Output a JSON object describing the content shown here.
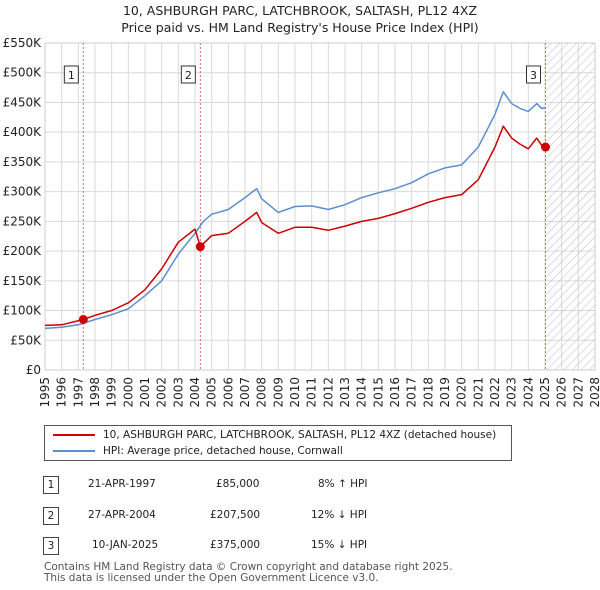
{
  "title_line1": "10, ASHBURGH PARC, LATCHBROOK, SALTASH, PL12 4XZ",
  "title_line2": "Price paid vs. HM Land Registry's House Price Index (HPI)",
  "legend": {
    "property": "10, ASHBURGH PARC, LATCHBROOK, SALTASH, PL12 4XZ (detached house)",
    "hpi": "HPI: Average price, detached house, Cornwall"
  },
  "colors": {
    "property": "#cc0000",
    "hpi": "#5b8fcf",
    "grid": "#d9d9d9",
    "vline": "#e06666",
    "hatch": "#bbbbbb"
  },
  "transactions": [
    {
      "num": "1",
      "date": "21-APR-1997",
      "price": "£85,000",
      "hpi": "8% ↑ HPI"
    },
    {
      "num": "2",
      "date": "27-APR-2004",
      "price": "£207,500",
      "hpi": "12% ↓ HPI"
    },
    {
      "num": "3",
      "date": "10-JAN-2025",
      "price": "£375,000",
      "hpi": "15% ↓ HPI"
    }
  ],
  "footer_line1": "Contains HM Land Registry data © Crown copyright and database right 2025.",
  "footer_line2": "This data is licensed under the Open Government Licence v3.0.",
  "chart_data": {
    "type": "line",
    "xlim": [
      1995,
      2028
    ],
    "ylim": [
      0,
      550000
    ],
    "x_ticks": [
      "1995",
      "1996",
      "1997",
      "1998",
      "1999",
      "2000",
      "2001",
      "2002",
      "2003",
      "2004",
      "2005",
      "2006",
      "2007",
      "2008",
      "2009",
      "2010",
      "2011",
      "2012",
      "2013",
      "2014",
      "2015",
      "2016",
      "2017",
      "2018",
      "2019",
      "2020",
      "2021",
      "2022",
      "2023",
      "2024",
      "2025",
      "2026",
      "2027",
      "2028"
    ],
    "y_ticks": [
      {
        "value": 0,
        "label": "£0"
      },
      {
        "value": 50000,
        "label": "£50K"
      },
      {
        "value": 100000,
        "label": "£100K"
      },
      {
        "value": 150000,
        "label": "£150K"
      },
      {
        "value": 200000,
        "label": "£200K"
      },
      {
        "value": 250000,
        "label": "£250K"
      },
      {
        "value": 300000,
        "label": "£300K"
      },
      {
        "value": 350000,
        "label": "£350K"
      },
      {
        "value": 400000,
        "label": "£400K"
      },
      {
        "value": 450000,
        "label": "£450K"
      },
      {
        "value": 500000,
        "label": "£500K"
      },
      {
        "value": 550000,
        "label": "£550K"
      }
    ],
    "sales": [
      {
        "label": "1",
        "x": 1997.3,
        "y": 85000
      },
      {
        "label": "2",
        "x": 2004.32,
        "y": 207500
      },
      {
        "label": "3",
        "x": 2025.03,
        "y": 375000
      }
    ],
    "forecast_start": 2025.03,
    "series": [
      {
        "name": "10, ASHBURGH PARC, LATCHBROOK, SALTASH, PL12 4XZ (detached house)",
        "x": [
          1995,
          1996,
          1997.3,
          1998,
          1999,
          2000,
          2001,
          2002,
          2003,
          2004,
          2004.32,
          2005,
          2006,
          2007,
          2007.7,
          2008,
          2009,
          2010,
          2011,
          2012,
          2013,
          2014,
          2015,
          2016,
          2017,
          2018,
          2019,
          2020,
          2021,
          2022,
          2022.5,
          2023,
          2023.5,
          2024,
          2024.5,
          2024.8,
          2025.03
        ],
        "values": [
          75000,
          76000,
          85000,
          92000,
          100000,
          113000,
          135000,
          170000,
          215000,
          237000,
          207500,
          226000,
          230000,
          250000,
          265000,
          248000,
          230000,
          240000,
          240000,
          235000,
          242000,
          250000,
          255000,
          263000,
          272000,
          282000,
          290000,
          295000,
          320000,
          375000,
          410000,
          390000,
          380000,
          372000,
          390000,
          378000,
          375000
        ]
      },
      {
        "name": "HPI: Average price, detached house, Cornwall",
        "x": [
          1995,
          1996,
          1997,
          1998,
          1999,
          2000,
          2001,
          2002,
          2003,
          2004,
          2004.5,
          2005,
          2006,
          2007,
          2007.7,
          2008,
          2009,
          2010,
          2011,
          2012,
          2013,
          2014,
          2015,
          2016,
          2017,
          2018,
          2019,
          2020,
          2021,
          2022,
          2022.5,
          2023,
          2023.5,
          2024,
          2024.5,
          2024.8,
          2025.03
        ],
        "values": [
          70000,
          72000,
          76000,
          85000,
          93000,
          103000,
          125000,
          150000,
          195000,
          230000,
          250000,
          262000,
          270000,
          290000,
          305000,
          288000,
          265000,
          275000,
          276000,
          270000,
          278000,
          290000,
          298000,
          305000,
          315000,
          330000,
          340000,
          345000,
          375000,
          430000,
          468000,
          448000,
          440000,
          435000,
          448000,
          440000,
          441000
        ]
      }
    ]
  }
}
